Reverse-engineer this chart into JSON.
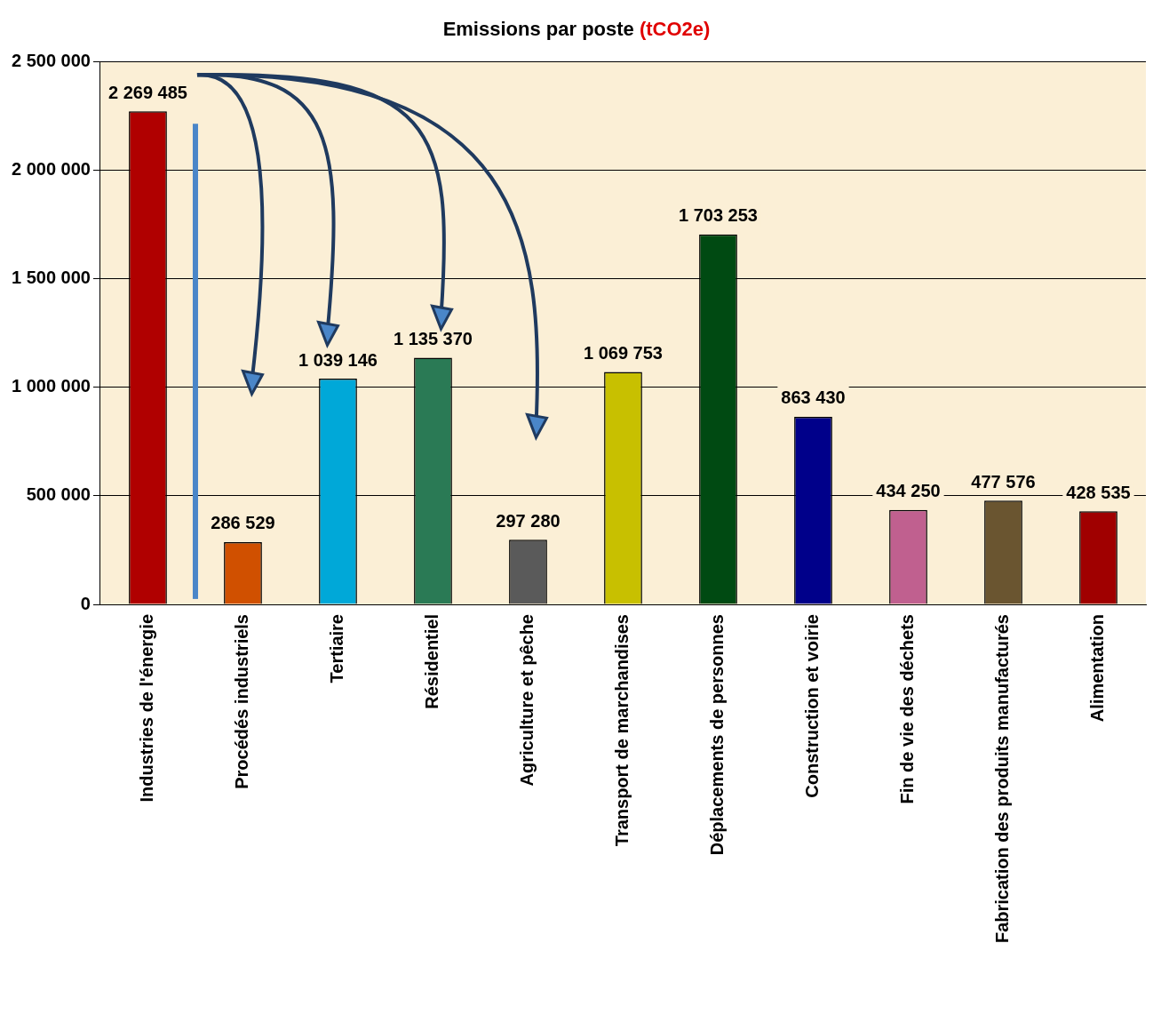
{
  "chart_data": {
    "type": "bar",
    "title": "Emissions par poste (tCO2e)",
    "categories": [
      "Industries de l'énergie",
      "Procédés industriels",
      "Tertiaire",
      "Résidentiel",
      "Agriculture et pêche",
      "Transport de marchandises",
      "Déplacements de personnes",
      "Construction et voirie",
      "Fin de vie des déchets",
      "Fabrication des produits manufacturés",
      "Alimentation"
    ],
    "values": [
      2269485,
      286529,
      1039146,
      1135370,
      297280,
      1069753,
      1703253,
      863430,
      434250,
      477576,
      428535
    ],
    "value_labels": [
      "2 269 485",
      "286 529",
      "1 039 146",
      "1 135 370",
      "297 280",
      "1 069 753",
      "1 703 253",
      "863 430",
      "434 250",
      "477 576",
      "428 535"
    ],
    "colors": [
      "#b00000",
      "#d05000",
      "#00a8d8",
      "#2a7a55",
      "#5a5a5a",
      "#c8c000",
      "#004a12",
      "#00008a",
      "#c0608f",
      "#6a5530",
      "#a00000"
    ],
    "ylim": [
      0,
      2500000
    ],
    "yticks": [
      {
        "value": 0,
        "label": "0"
      },
      {
        "value": 500000,
        "label": "500 000"
      },
      {
        "value": 1000000,
        "label": "1 000 000"
      },
      {
        "value": 1500000,
        "label": "1 500 000"
      },
      {
        "value": 2000000,
        "label": "2 000 000"
      },
      {
        "value": 2500000,
        "label": "2 500 000"
      }
    ],
    "grid": "y",
    "legend": false
  }
}
